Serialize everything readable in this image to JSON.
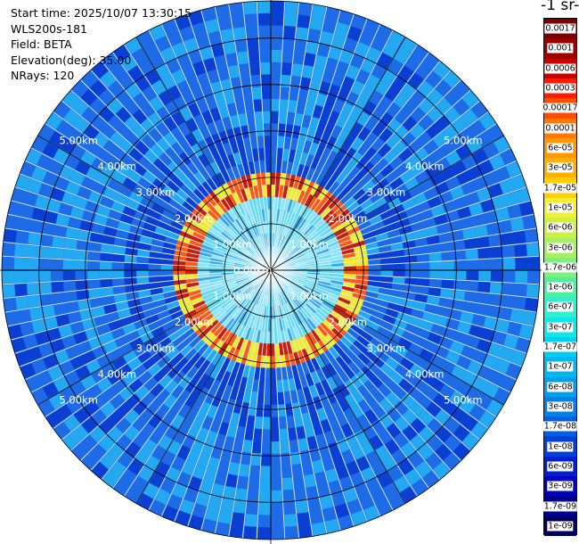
{
  "header": {
    "start_time": "Start time: 2025/10/07 13:30:15",
    "instrument": "WLS200s-181",
    "field": "Field: BETA",
    "elevation": "Elevation(deg): 35.00",
    "nrays": "NRays: 120"
  },
  "colorbar": {
    "unit_title": "-1 sr-",
    "labels": [
      "0.0017",
      "0.001",
      "0.0006",
      "0.0003",
      "0.00017",
      "0.0001",
      "6e-05",
      "3e-05",
      "1.7e-05",
      "1e-05",
      "6e-06",
      "3e-06",
      "1.7e-06",
      "1e-06",
      "6e-07",
      "3e-07",
      "1.7e-07",
      "1e-07",
      "6e-08",
      "3e-08",
      "1.7e-08",
      "1e-08",
      "6e-09",
      "3e-09",
      "1.7e-09",
      "1e-09"
    ],
    "colors": [
      "#7a0000",
      "#9e0000",
      "#c80000",
      "#ff1a00",
      "#ff4d00",
      "#ff7a00",
      "#ff9900",
      "#ffb000",
      "#ffd000",
      "#f2ee30",
      "#d0f040",
      "#a8f060",
      "#7cf07c",
      "#4df0a0",
      "#2df0cc",
      "#10e8e8",
      "#00d0f0",
      "#00b8f0",
      "#00a0e8",
      "#0080e8",
      "#0060e0",
      "#0040d8",
      "#0020d0",
      "#0000c0",
      "#000090",
      "#000060"
    ]
  },
  "map": {
    "center_range_label": "0.00km",
    "range_labels": [
      "1.00km",
      "2.00km",
      "3.00km",
      "4.00km",
      "5.00km"
    ],
    "max_range_km": 5.8,
    "n_rays": 120,
    "colors": {
      "background_field": "#1e6be8",
      "field_light": "#23a9f2",
      "field_dark": "#0b3fd3",
      "ring_yellow": "#f2ec28",
      "ring_red": "#ff5a12",
      "ring_dark_red": "#c81e0a",
      "core_cyan": "#64dcf0",
      "core_light": "#8ce4f8",
      "core_blue": "#38a8ee"
    }
  }
}
